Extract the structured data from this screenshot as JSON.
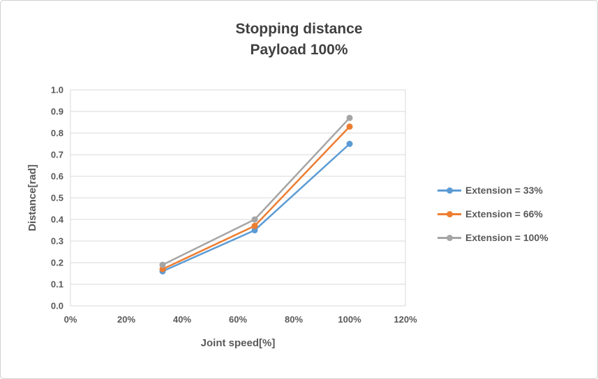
{
  "chart_data": {
    "type": "line",
    "title": "Stopping distance",
    "subtitle": "Payload 100%",
    "xlabel": "Joint speed[%]",
    "ylabel": "Distance[rad]",
    "x": [
      33,
      66,
      100
    ],
    "series": [
      {
        "name": "Extension = 33%",
        "color": "#5B9BD5",
        "values": [
          0.16,
          0.35,
          0.75
        ]
      },
      {
        "name": "Extension = 66%",
        "color": "#ED7D31",
        "values": [
          0.17,
          0.37,
          0.83
        ]
      },
      {
        "name": "Extension = 100%",
        "color": "#A5A5A5",
        "values": [
          0.19,
          0.4,
          0.87
        ]
      }
    ],
    "xlim": [
      0,
      120
    ],
    "ylim": [
      0,
      1.0
    ],
    "x_tick_values": [
      0,
      20,
      40,
      60,
      80,
      100,
      120
    ],
    "x_ticks": [
      "0%",
      "20%",
      "40%",
      "60%",
      "80%",
      "100%",
      "120%"
    ],
    "y_tick_values": [
      0,
      0.1,
      0.2,
      0.3,
      0.4,
      0.5,
      0.6,
      0.7,
      0.8,
      0.9,
      1.0
    ],
    "y_ticks": [
      "0.0",
      "0.1",
      "0.2",
      "0.3",
      "0.4",
      "0.5",
      "0.6",
      "0.7",
      "0.8",
      "0.9",
      "1.0"
    ],
    "grid": "horizontal",
    "legend_position": "right",
    "theme": {
      "gridline": "#D9D9D9",
      "plot_border": "#D9D9D9",
      "axis_text": "#595959",
      "title_text": "#404040"
    }
  }
}
